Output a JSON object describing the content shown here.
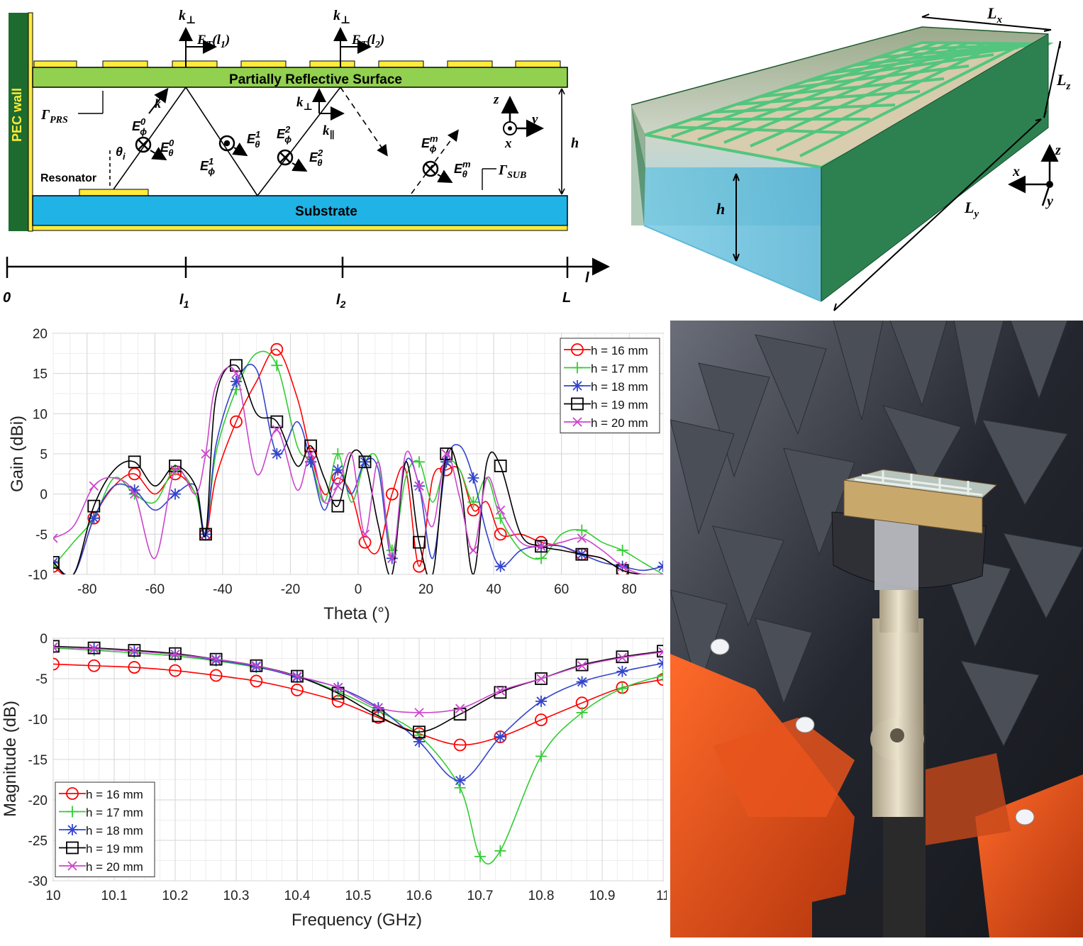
{
  "schematic": {
    "pec_wall": "PEC wall",
    "prs_label": "Partially Reflective Surface",
    "substrate_label": "Substrate",
    "resonator_label": "Resonator",
    "gamma_prs": "Γ",
    "gamma_prs_sub": "PRS",
    "gamma_sub": "Γ",
    "gamma_sub_sub": "SUB",
    "k_perp": "k",
    "k_perp_sub": "⊥",
    "k_par_sub": "∥",
    "et1": "E",
    "et1_sub": "T",
    "et1_arg": "(l",
    "et1_arg_sub": "1",
    "et2_arg_sub": "2",
    "arg_close": ")",
    "k_label": "k",
    "e_phi": "E",
    "phi_sub": "ϕ",
    "theta_sub": "θ",
    "sup0": "0",
    "sup1": "1",
    "sup2": "2",
    "supm": "m",
    "theta_i": "θ",
    "theta_i_sub": "i",
    "h_label": "h",
    "axis_z": "z",
    "axis_y": "y",
    "axis_x": "x",
    "ruler": {
      "zero": "0",
      "l": "l",
      "l_sub1": "1",
      "l_sub2": "2",
      "L": "L",
      "arrow_label": "l"
    }
  },
  "box3d": {
    "lx": "L",
    "lx_sub": "x",
    "ly": "L",
    "ly_sub": "y",
    "lz": "L",
    "lz_sub": "z",
    "h": "h",
    "axis_x": "x",
    "axis_y": "y",
    "axis_z": "z"
  },
  "colors": {
    "prs_green": "#92d050",
    "substrate_blue": "#1fb3e6",
    "copper_yellow": "#ffeb3b",
    "pec_dark_green": "#1e6b30",
    "box_green": "#2e8b57",
    "s16": "#ff0000",
    "s17": "#33cc33",
    "s18": "#3344cc",
    "s19": "#000000",
    "s20": "#cc44cc"
  },
  "chart_data": [
    {
      "type": "line",
      "xlabel": "Theta (°)",
      "ylabel": "Gain (dBi)",
      "xlim": [
        -90,
        90
      ],
      "ylim": [
        -10,
        20
      ],
      "xticks": [
        -80,
        -60,
        -40,
        -20,
        0,
        20,
        40,
        60,
        80
      ],
      "yticks": [
        -10,
        -5,
        0,
        5,
        10,
        15,
        20
      ],
      "grid": true,
      "legend": "top-right",
      "series": [
        {
          "name": "h = 16 mm",
          "marker": "circle",
          "x": [
            -90,
            -84,
            -78,
            -72,
            -66,
            -60,
            -54,
            -48,
            -45,
            -42,
            -36,
            -30,
            -24,
            -18,
            -14,
            -10,
            -6,
            -2,
            2,
            6,
            10,
            14,
            18,
            22,
            26,
            30,
            34,
            38,
            42,
            48,
            54,
            60,
            66,
            72,
            78,
            84,
            90
          ],
          "y": [
            -9,
            -10,
            -3,
            1,
            2.5,
            0,
            2.5,
            0,
            -5,
            2,
            9,
            14,
            18,
            12,
            5,
            0,
            2,
            0,
            -6,
            -7,
            0,
            3,
            -9,
            2,
            3,
            3,
            -2,
            -1,
            -5,
            -5,
            -6,
            -6.5,
            -7.5,
            -8,
            -9.5,
            -10,
            -10
          ]
        },
        {
          "name": "h = 17 mm",
          "marker": "plus",
          "x": [
            -90,
            -84,
            -78,
            -72,
            -66,
            -60,
            -54,
            -48,
            -45,
            -42,
            -36,
            -30,
            -24,
            -18,
            -14,
            -10,
            -6,
            -2,
            2,
            6,
            10,
            14,
            18,
            22,
            26,
            30,
            34,
            38,
            42,
            48,
            54,
            60,
            66,
            72,
            78,
            84,
            90
          ],
          "y": [
            -9,
            -6,
            -3,
            2,
            0,
            -1,
            3,
            0,
            -5,
            5,
            13,
            17.5,
            16,
            6,
            4,
            -1,
            5,
            -1,
            4,
            4,
            -7,
            2,
            4,
            -1,
            4,
            3,
            -1,
            2,
            -3,
            -7,
            -8,
            -5,
            -4.5,
            -6,
            -7,
            -8.5,
            -10
          ]
        },
        {
          "name": "h = 18 mm",
          "marker": "asterisk",
          "x": [
            -90,
            -84,
            -78,
            -72,
            -66,
            -60,
            -54,
            -48,
            -45,
            -42,
            -36,
            -30,
            -24,
            -18,
            -14,
            -10,
            -6,
            -2,
            2,
            6,
            10,
            14,
            18,
            22,
            26,
            30,
            34,
            38,
            42,
            48,
            54,
            60,
            66,
            72,
            78,
            84,
            90
          ],
          "y": [
            -8.5,
            -10,
            -3,
            1,
            0.5,
            -2,
            0,
            1,
            -5,
            6,
            14,
            15.5,
            5,
            9,
            4,
            -2,
            3,
            0,
            4,
            3,
            -8,
            4,
            1,
            -8,
            4,
            6,
            2,
            -5,
            -9,
            -7,
            -6.5,
            -6.5,
            -7.5,
            -8.5,
            -9,
            -9.5,
            -9
          ]
        },
        {
          "name": "h = 19 mm",
          "marker": "square",
          "x": [
            -90,
            -84,
            -78,
            -72,
            -66,
            -60,
            -54,
            -48,
            -45,
            -42,
            -36,
            -30,
            -24,
            -18,
            -14,
            -10,
            -6,
            -2,
            2,
            6,
            10,
            14,
            18,
            22,
            26,
            30,
            34,
            38,
            42,
            48,
            54,
            60,
            66,
            72,
            78,
            84,
            90
          ],
          "y": [
            -8.5,
            -10,
            -1.5,
            3,
            4,
            1,
            3.5,
            1,
            -5,
            12,
            16,
            10,
            9,
            3.5,
            6,
            2,
            -1.5,
            5,
            4,
            -4,
            -10,
            4,
            -6,
            -10,
            5,
            2,
            -10,
            4,
            3.5,
            -5,
            -6.5,
            -7,
            -7.5,
            -8,
            -9.5,
            -10,
            -10
          ]
        },
        {
          "name": "h = 20 mm",
          "marker": "x",
          "x": [
            -90,
            -84,
            -78,
            -72,
            -66,
            -60,
            -54,
            -48,
            -45,
            -42,
            -36,
            -30,
            -24,
            -18,
            -14,
            -10,
            -6,
            -2,
            2,
            6,
            10,
            14,
            18,
            22,
            26,
            30,
            34,
            38,
            42,
            48,
            54,
            60,
            66,
            72,
            78,
            84,
            90
          ],
          "y": [
            -5.5,
            -4,
            1,
            2,
            0,
            -8,
            3,
            0,
            5,
            13.5,
            15,
            2.5,
            8,
            0.5,
            5,
            -1,
            1,
            5,
            -5,
            4,
            -8,
            5,
            1,
            -4,
            5,
            -0.5,
            -7,
            2,
            -2,
            -6,
            -6.5,
            -6,
            -5.5,
            -7,
            -9,
            -10,
            -10
          ]
        }
      ]
    },
    {
      "type": "line",
      "xlabel": "Frequency (GHz)",
      "ylabel": "Magnitude (dB)",
      "xlim": [
        10,
        11
      ],
      "ylim": [
        -30,
        0
      ],
      "xticks": [
        10,
        10.1,
        10.2,
        10.3,
        10.4,
        10.5,
        10.6,
        10.7,
        10.8,
        10.9,
        11
      ],
      "xtick_labels": [
        "10",
        "10.1",
        "10.2",
        "10.3",
        "10.4",
        "10.5",
        "10.6",
        "10.7",
        "10.8",
        "10.9",
        "11"
      ],
      "yticks": [
        -30,
        -25,
        -20,
        -15,
        -10,
        -5,
        0
      ],
      "ytick_labels": [
        "-30",
        "-25",
        "-20",
        "-15",
        "-10",
        "-5",
        "0"
      ],
      "grid": true,
      "legend": "bottom-left",
      "series": [
        {
          "name": "h = 16 mm",
          "marker": "circle",
          "x": [
            10,
            10.067,
            10.133,
            10.2,
            10.267,
            10.333,
            10.4,
            10.467,
            10.533,
            10.6,
            10.667,
            10.733,
            10.8,
            10.867,
            10.933,
            11
          ],
          "y": [
            -3.2,
            -3.4,
            -3.6,
            -4,
            -4.6,
            -5.3,
            -6.4,
            -7.8,
            -9.8,
            -11.8,
            -13.2,
            -12.2,
            -10.1,
            -8,
            -6.1,
            -5.1
          ]
        },
        {
          "name": "h = 17 mm",
          "marker": "plus",
          "x": [
            10,
            10.067,
            10.133,
            10.2,
            10.267,
            10.333,
            10.4,
            10.467,
            10.533,
            10.6,
            10.667,
            10.7,
            10.733,
            10.8,
            10.867,
            10.933,
            11
          ],
          "y": [
            -1.2,
            -1.5,
            -1.8,
            -2.2,
            -2.8,
            -3.6,
            -4.7,
            -6.6,
            -9,
            -12,
            -18.5,
            -27,
            -26.3,
            -14.6,
            -9.2,
            -6.2,
            -4.6
          ]
        },
        {
          "name": "h = 18 mm",
          "marker": "asterisk",
          "x": [
            10,
            10.067,
            10.133,
            10.2,
            10.267,
            10.333,
            10.4,
            10.467,
            10.533,
            10.6,
            10.667,
            10.733,
            10.8,
            10.867,
            10.933,
            11
          ],
          "y": [
            -1.1,
            -1.3,
            -1.6,
            -2,
            -2.7,
            -3.5,
            -4.8,
            -6.1,
            -8.6,
            -12.8,
            -17.6,
            -12.2,
            -7.8,
            -5.4,
            -4.1,
            -3.1
          ]
        },
        {
          "name": "h = 19 mm",
          "marker": "square",
          "x": [
            10,
            10.067,
            10.133,
            10.2,
            10.267,
            10.333,
            10.4,
            10.467,
            10.533,
            10.6,
            10.667,
            10.733,
            10.8,
            10.867,
            10.933,
            11
          ],
          "y": [
            -1,
            -1.2,
            -1.5,
            -1.9,
            -2.6,
            -3.4,
            -4.7,
            -6.8,
            -9.6,
            -11.6,
            -9.4,
            -6.7,
            -5,
            -3.3,
            -2.3,
            -1.6
          ]
        },
        {
          "name": "h = 20 mm",
          "marker": "x",
          "x": [
            10,
            10.067,
            10.133,
            10.2,
            10.267,
            10.333,
            10.4,
            10.467,
            10.533,
            10.6,
            10.667,
            10.733,
            10.8,
            10.867,
            10.933,
            11
          ],
          "y": [
            -1.1,
            -1.3,
            -1.6,
            -2,
            -2.6,
            -3.4,
            -4.7,
            -6.1,
            -8.6,
            -9.2,
            -8.7,
            -6.5,
            -5,
            -3.4,
            -2.4,
            -1.7
          ]
        }
      ]
    }
  ]
}
